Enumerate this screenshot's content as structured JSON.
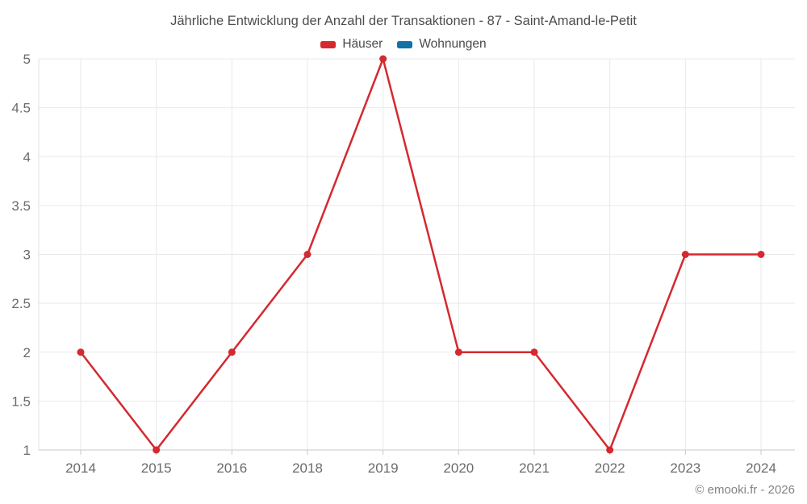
{
  "copyright": "© emooki.fr - 2026",
  "chart_data": {
    "type": "line",
    "title": "Jährliche Entwicklung der Anzahl der Transaktionen - 87 - Saint-Amand-le-Petit",
    "categories": [
      "2014",
      "2015",
      "2016",
      "2018",
      "2019",
      "2020",
      "2021",
      "2022",
      "2023",
      "2024"
    ],
    "series": [
      {
        "name": "Häuser",
        "color": "#d4292f",
        "values": [
          2,
          1,
          2,
          3,
          5,
          2,
          2,
          1,
          3,
          3
        ]
      },
      {
        "name": "Wohnungen",
        "color": "#1272a8",
        "values": []
      }
    ],
    "ylim": [
      1,
      5
    ],
    "ytick_step": 0.5,
    "xlabel": "",
    "ylabel": "",
    "grid": true,
    "legend_position": "top"
  },
  "style": {
    "gridline_color": "#e9e9e9",
    "axis_color": "#c9c9c9",
    "label_color": "#6b6b6b"
  }
}
